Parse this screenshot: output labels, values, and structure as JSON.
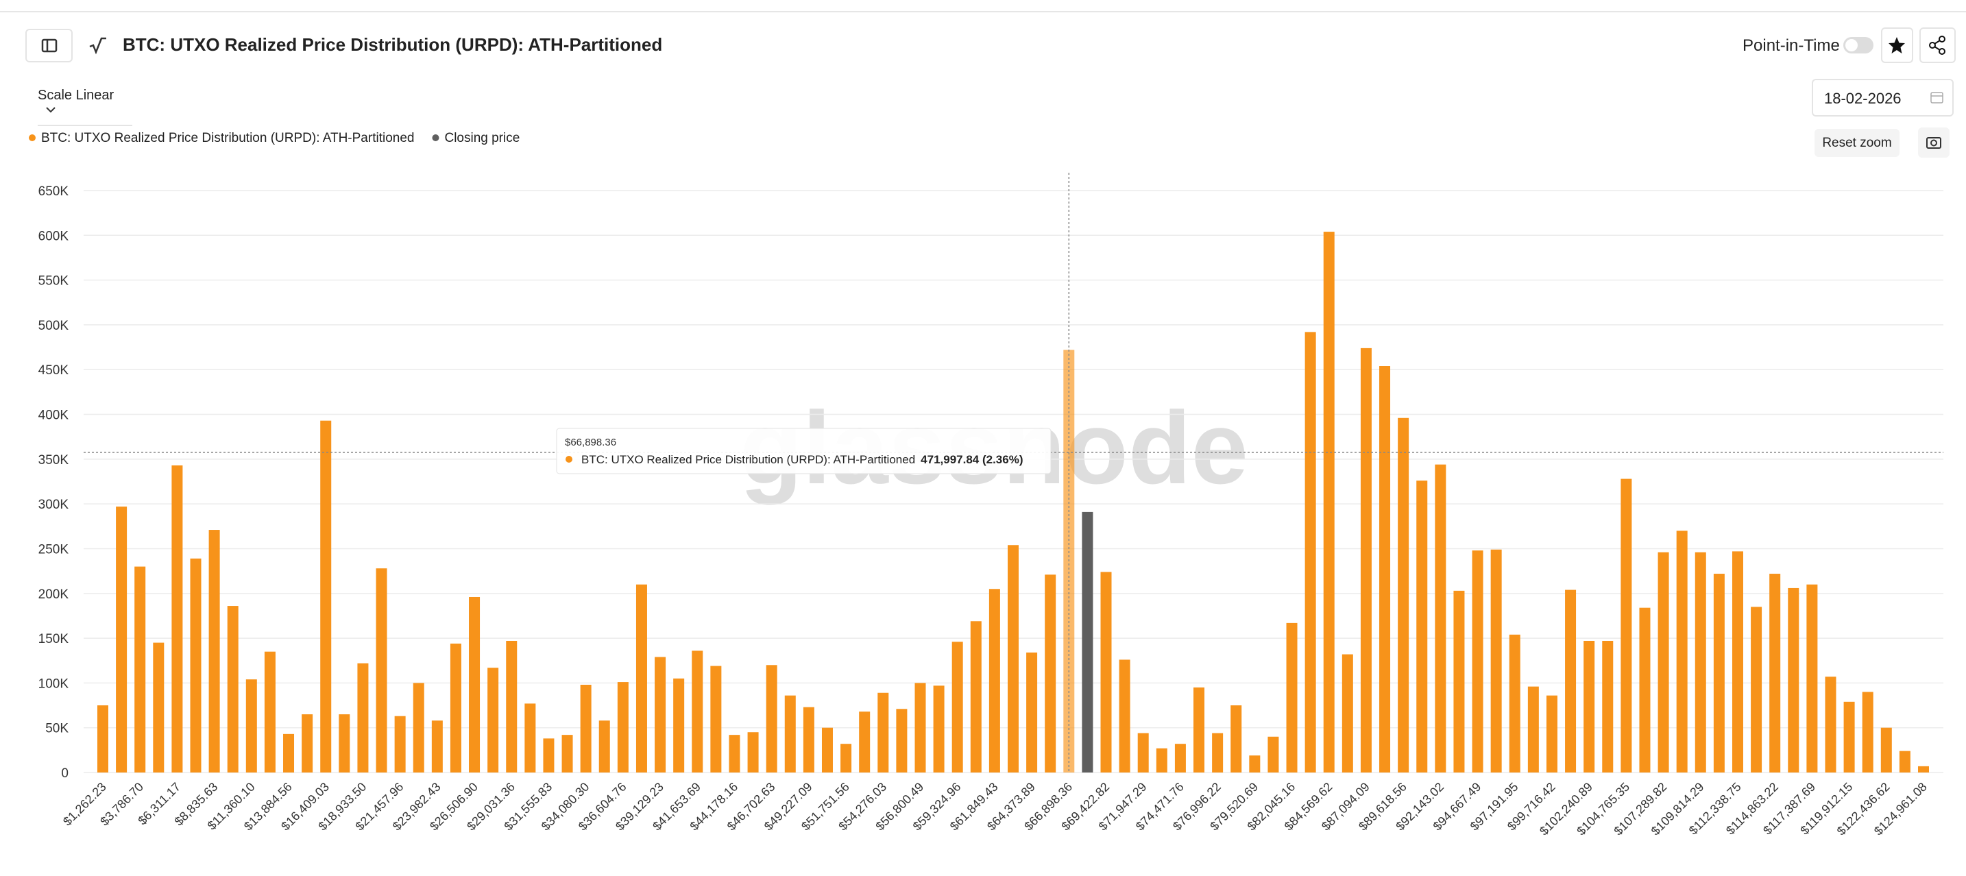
{
  "header": {
    "title": "BTC: UTXO Realized Price Distribution (URPD): ATH-Partitioned",
    "point_in_time": "Point-in-Time",
    "scale": "Scale Linear",
    "date": "18-02-2026",
    "reset_zoom": "Reset zoom"
  },
  "chart_data": {
    "type": "bar",
    "watermark": "glassnode",
    "categories": [
      "$1,262.23",
      null,
      "$3,786.70",
      null,
      "$6,311.17",
      null,
      "$8,835.63",
      null,
      "$11,360.10",
      null,
      "$13,884.56",
      null,
      "$16,409.03",
      null,
      "$18,933.50",
      null,
      "$21,457.96",
      null,
      "$23,982.43",
      null,
      "$26,506.90",
      null,
      "$29,031.36",
      null,
      "$31,555.83",
      null,
      "$34,080.30",
      null,
      "$36,604.76",
      null,
      "$39,129.23",
      null,
      "$41,653.69",
      null,
      "$44,178.16",
      null,
      "$46,702.63",
      null,
      "$49,227.09",
      null,
      "$51,751.56",
      null,
      "$54,276.03",
      null,
      "$56,800.49",
      null,
      "$59,324.96",
      null,
      "$61,849.43",
      null,
      "$64,373.89",
      null,
      "$66,898.36",
      null,
      "$69,422.82",
      null,
      "$71,947.29",
      null,
      "$74,471.76",
      null,
      "$76,996.22",
      null,
      "$79,520.69",
      null,
      "$82,045.16",
      null,
      "$84,569.62",
      null,
      "$87,094.09",
      null,
      "$89,618.56",
      null,
      "$92,143.02",
      null,
      "$94,667.49",
      null,
      "$97,191.95",
      null,
      "$99,716.42",
      null,
      "$102,240.89",
      null,
      "$104,765.35",
      null,
      "$107,289.82",
      null,
      "$109,814.29",
      null,
      "$112,338.75",
      null,
      "$114,863.22",
      null,
      "$117,387.69",
      null,
      "$119,912.15",
      null,
      "$122,436.62",
      null,
      "$124,961.08"
    ],
    "series": [
      {
        "name": "BTC: UTXO Realized Price Distribution (URPD): ATH-Partitioned",
        "color": "#f7931a",
        "values": [
          75000,
          297000,
          230000,
          145000,
          343000,
          239000,
          271000,
          186000,
          104000,
          135000,
          43000,
          65000,
          393000,
          65000,
          122000,
          228000,
          63000,
          100000,
          58000,
          144000,
          196000,
          117000,
          147000,
          77000,
          38000,
          42000,
          98000,
          58000,
          101000,
          210000,
          129000,
          105000,
          136000,
          119000,
          42000,
          45000,
          120000,
          86000,
          73000,
          50000,
          32000,
          68000,
          89000,
          71000,
          100000,
          97000,
          146000,
          169000,
          205000,
          254000,
          134000,
          221000,
          471997.84,
          null,
          224000,
          126000,
          44000,
          27000,
          32000,
          95000,
          44000,
          75000,
          19000,
          40000,
          167000,
          492000,
          604000,
          132000,
          474000,
          454000,
          396000,
          326000,
          344000,
          203000,
          248000,
          249000,
          154000,
          96000,
          86000,
          204000,
          147000,
          147000,
          328000,
          184000,
          246000,
          270000,
          246000,
          222000,
          247000,
          185000,
          222000,
          206000,
          210000,
          107000,
          79000,
          90000,
          50000,
          24000,
          7000
        ]
      },
      {
        "name": "Closing price",
        "color": "#5f5f5f",
        "values": [
          null,
          null,
          null,
          null,
          null,
          null,
          null,
          null,
          null,
          null,
          null,
          null,
          null,
          null,
          null,
          null,
          null,
          null,
          null,
          null,
          null,
          null,
          null,
          null,
          null,
          null,
          null,
          null,
          null,
          null,
          null,
          null,
          null,
          null,
          null,
          null,
          null,
          null,
          null,
          null,
          null,
          null,
          null,
          null,
          null,
          null,
          null,
          null,
          null,
          null,
          null,
          null,
          null,
          291000,
          null,
          null,
          null,
          null,
          null,
          null,
          null,
          null,
          null,
          null,
          null,
          null,
          null,
          null,
          null,
          null,
          null,
          null,
          null,
          null,
          null,
          null,
          null,
          null,
          null,
          null,
          null,
          null,
          null,
          null,
          null,
          null,
          null,
          null,
          null,
          null,
          null,
          null,
          null,
          null,
          null,
          null,
          null,
          null,
          null
        ]
      }
    ],
    "ylim": [
      0,
      650000
    ],
    "yticks": [
      0,
      {
        "value": 50000,
        "label": "50K"
      },
      {
        "value": 100000,
        "label": "100K"
      },
      {
        "value": 150000,
        "label": "150K"
      },
      {
        "value": 200000,
        "label": "200K"
      },
      {
        "value": 250000,
        "label": "250K"
      },
      {
        "value": 300000,
        "label": "300K"
      },
      {
        "value": 350000,
        "label": "350K"
      },
      {
        "value": 400000,
        "label": "400K"
      },
      {
        "value": 450000,
        "label": "450K"
      },
      {
        "value": 500000,
        "label": "500K"
      },
      {
        "value": 550000,
        "label": "550K"
      },
      {
        "value": 600000,
        "label": "600K"
      },
      {
        "value": 650000,
        "label": "650K"
      }
    ],
    "grid": true,
    "tooltip": {
      "category": "$66,898.36",
      "value": 471997.84,
      "value_label": "471,997.84 (2.36%)"
    }
  }
}
